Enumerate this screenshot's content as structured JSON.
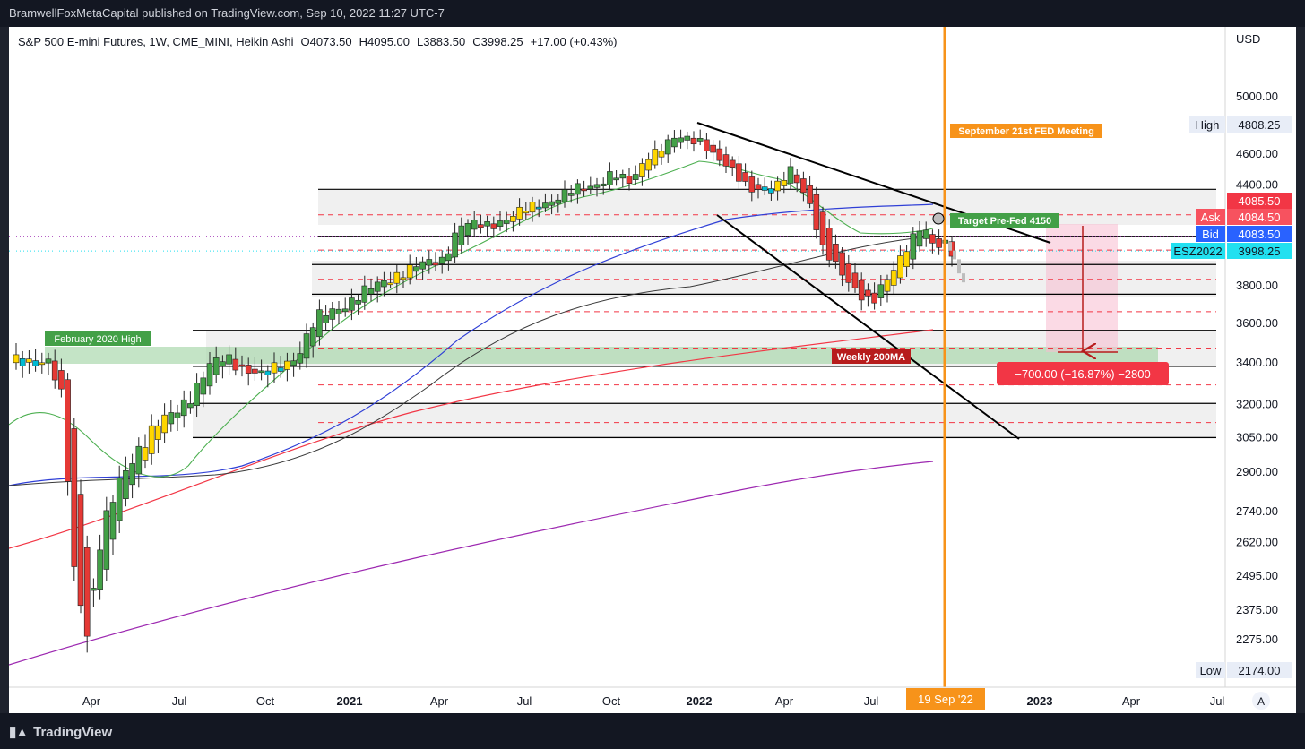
{
  "header": {
    "publisher": "BramwellFoxMetaCapital published on TradingView.com, Sep 10, 2022 11:27 UTC-7"
  },
  "footer": {
    "brand": "TradingView",
    "brand_icon": "tradingview-logo-icon"
  },
  "chart_data": {
    "type": "candlestick",
    "title": "S&P 500 E-mini Futures, 1W, CME_MINI, Heikin Ashi",
    "ohlc_label": {
      "open": "O4073.50",
      "high": "H4095.00",
      "low": "L3883.50",
      "close": "C3998.25",
      "change": "+17.00 (+0.43%)"
    },
    "currency": "USD",
    "y_ticks": [
      "5000.00",
      "4600.00",
      "4400.00",
      "3800.00",
      "3600.00",
      "3400.00",
      "3200.00",
      "3050.00",
      "2900.00",
      "2740.00",
      "2620.00",
      "2495.00",
      "2375.00",
      "2275.00"
    ],
    "x_ticks": [
      "Apr",
      "Jul",
      "Oct",
      "2021",
      "Apr",
      "Jul",
      "Oct",
      "2022",
      "Apr",
      "Jul",
      "2023",
      "Apr",
      "Jul"
    ],
    "price_tags": [
      {
        "label": "High",
        "value": "4808.25",
        "color": "#e8edf7"
      },
      {
        "label": "",
        "value": "4085.50",
        "color": "#f23645"
      },
      {
        "label": "Ask",
        "value": "4084.50",
        "color": "#f7525f"
      },
      {
        "label": "Bid",
        "value": "4083.50",
        "color": "#2962ff"
      },
      {
        "label": "ESZ2022",
        "value": "3998.25",
        "color": "#22e0f0"
      },
      {
        "label": "Low",
        "value": "2174.00",
        "color": "#e8edf7"
      }
    ],
    "annotations": {
      "fed_meeting": "September 21st FED Meeting",
      "target": "Target Pre-Fed 4150",
      "feb_high": "February 2020 High",
      "ma200": "Weekly 200MA",
      "measure": "−700.00 (−16.87%) −2800",
      "date_marker": "19 Sep '22",
      "auto_scale": "A"
    },
    "horizontal_levels": [
      4372,
      4084,
      3920,
      3755,
      3563,
      3382,
      3205,
      3050
    ],
    "dashed_levels": [
      4213,
      4003,
      3837,
      3661,
      3473,
      3292,
      3117
    ],
    "colors": {
      "bull": "#26a69a",
      "bear": "#ef5350",
      "ma20": "#4caf50",
      "ma50": "#2f3fd6",
      "ma100": "#3a3a3a",
      "ma200": "#f23645",
      "ma_long": "#9c27b0",
      "fed_line": "#f7931a"
    }
  }
}
